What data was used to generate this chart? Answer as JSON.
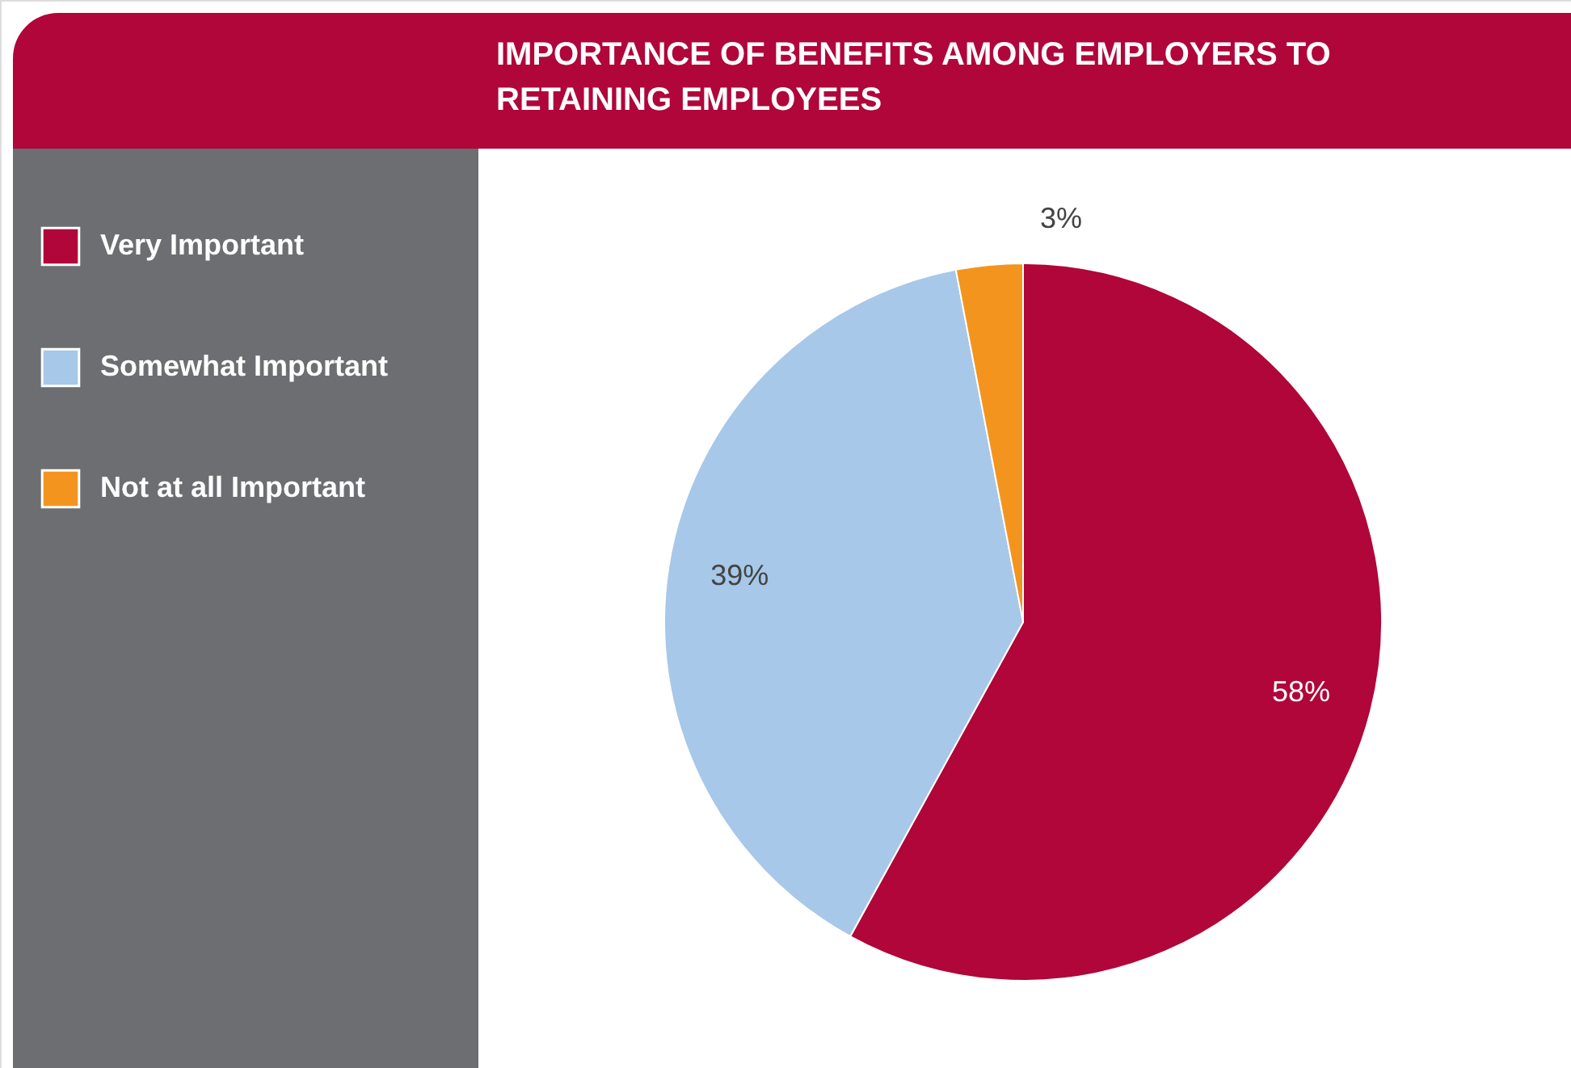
{
  "chart_data": {
    "type": "pie",
    "title": "IMPORTANCE OF BENEFITS AMONG EMPLOYERS TO RETAINING EMPLOYEES",
    "categories": [
      "Very Important",
      "Somewhat Important",
      "Not at all Important"
    ],
    "values": [
      58,
      39,
      3
    ],
    "colors": [
      "#b0063a",
      "#a7c8e8",
      "#f3941f"
    ],
    "value_labels": [
      "58%",
      "39%",
      "3%"
    ],
    "legend": "left"
  }
}
